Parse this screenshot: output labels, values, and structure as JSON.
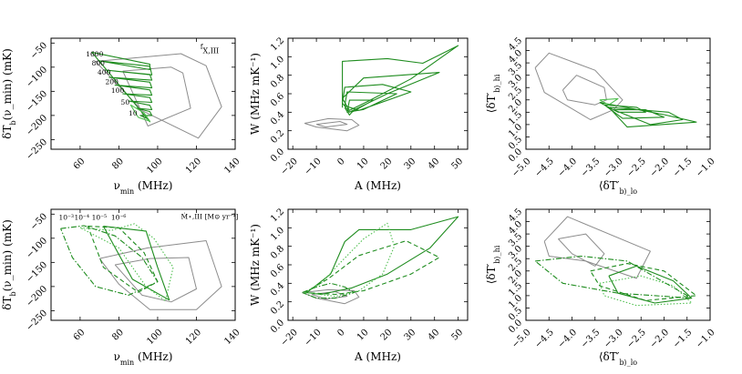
{
  "colors": {
    "gray": "#8c8c8c",
    "green": "#1e8c1e",
    "lightgreen": "#4fbf4f"
  },
  "chart_data": [
    {
      "type": "line",
      "panel": "top-left",
      "xlabel": "ν_min (MHz)",
      "ylabel": "δT_b(ν_min) (mK)",
      "xlim": [
        45,
        140
      ],
      "ylim": [
        -270,
        -40
      ],
      "xticks": [
        "60",
        "80",
        "100",
        "120",
        "140"
      ],
      "xtick_values": [
        60,
        80,
        100,
        120,
        140
      ],
      "yticks": [
        "−50",
        "−100",
        "−150",
        "−200",
        "−250"
      ],
      "ytick_values": [
        -50,
        -100,
        -150,
        -200,
        -250
      ],
      "annotations": [
        {
          "text": "f_X,III",
          "x": 122,
          "y": -62
        },
        {
          "text": "1600",
          "x": 63,
          "y": -78
        },
        {
          "text": "800",
          "x": 66,
          "y": -97
        },
        {
          "text": "400",
          "x": 69,
          "y": -115
        },
        {
          "text": "200",
          "x": 73,
          "y": -135
        },
        {
          "text": "100",
          "x": 76,
          "y": -153
        },
        {
          "text": "50",
          "x": 81,
          "y": -178
        },
        {
          "text": "10",
          "x": 85,
          "y": -200
        }
      ],
      "series": [
        {
          "name": "gray-outer",
          "color": "gray",
          "dash": "solid",
          "x": [
            68,
            112,
            125,
            133,
            121,
            92,
            68
          ],
          "y": [
            -88,
            -72,
            -97,
            -182,
            -247,
            -190,
            -88
          ]
        },
        {
          "name": "gray-inner",
          "color": "gray",
          "dash": "solid",
          "x": [
            82,
            107,
            113,
            117,
            95,
            82
          ],
          "y": [
            -108,
            -100,
            -112,
            -185,
            -222,
            -108
          ]
        },
        {
          "name": "green-tracks",
          "color": "green",
          "dash": "solid",
          "x": [
            66,
            96,
            96,
            70,
            96,
            97,
            73,
            96,
            97,
            75,
            96,
            97,
            78,
            96,
            97,
            82,
            96,
            97,
            85,
            96,
            97,
            89,
            96,
            97,
            91,
            95,
            96,
            66
          ],
          "y": [
            -69,
            -94,
            -105,
            -87,
            -98,
            -116,
            -106,
            -115,
            -127,
            -121,
            -131,
            -143,
            -137,
            -147,
            -158,
            -155,
            -163,
            -173,
            -170,
            -179,
            -188,
            -185,
            -192,
            -200,
            -200,
            -207,
            -213,
            -69
          ]
        },
        {
          "name": "green-light",
          "color": "lightgreen",
          "dash": "solid",
          "x": [
            86,
            93,
            96,
            90,
            86
          ],
          "y": [
            -178,
            -195,
            -212,
            -204,
            -178
          ]
        }
      ]
    },
    {
      "type": "line",
      "panel": "top-center",
      "xlabel": "A (MHz)",
      "ylabel": "W (MHz mK⁻¹)",
      "xlim": [
        -22,
        54
      ],
      "ylim": [
        0,
        1.2
      ],
      "xticks": [
        "−20",
        "−10",
        "0",
        "10",
        "20",
        "30",
        "40",
        "50"
      ],
      "xtick_values": [
        -20,
        -10,
        0,
        10,
        20,
        30,
        40,
        50
      ],
      "yticks": [
        "0.0",
        "0.2",
        "0.4",
        "0.6",
        "0.8",
        "1.0",
        "1.2"
      ],
      "ytick_values": [
        0,
        0.2,
        0.4,
        0.6,
        0.8,
        1.0,
        1.2
      ],
      "series": [
        {
          "name": "gray-loop",
          "color": "gray",
          "dash": "solid",
          "x": [
            -15,
            -5,
            5,
            8,
            3,
            -10,
            -15
          ],
          "y": [
            0.28,
            0.33,
            0.32,
            0.26,
            0.2,
            0.24,
            0.28
          ]
        },
        {
          "name": "gray-inner",
          "color": "gray",
          "dash": "solid",
          "x": [
            -10,
            0,
            3,
            -6,
            -10
          ],
          "y": [
            0.27,
            0.3,
            0.27,
            0.24,
            0.27
          ]
        },
        {
          "name": "green-tracks",
          "color": "green",
          "dash": "solid",
          "x": [
            1,
            1,
            20,
            35,
            50,
            30,
            12,
            4,
            1,
            10,
            42,
            20,
            4,
            1,
            2,
            18,
            30,
            8,
            2,
            3,
            24,
            10,
            3,
            4,
            14,
            5,
            4,
            2
          ],
          "y": [
            0.45,
            0.95,
            0.98,
            0.93,
            1.12,
            0.76,
            0.52,
            0.42,
            0.55,
            0.77,
            0.83,
            0.6,
            0.4,
            0.5,
            0.67,
            0.7,
            0.62,
            0.42,
            0.47,
            0.62,
            0.6,
            0.43,
            0.4,
            0.53,
            0.53,
            0.4,
            0.37,
            0.45
          ]
        }
      ]
    },
    {
      "type": "line",
      "panel": "top-right",
      "xlabel": "⟨δT′_b⟩_lo",
      "ylabel": "⟨δT′_b⟩_hi",
      "xlim": [
        -5.0,
        -1.0
      ],
      "ylim": [
        0,
        4.5
      ],
      "xticks": [
        "−5.0",
        "−4.5",
        "−4.0",
        "−3.5",
        "−3.0",
        "−2.5",
        "−2.0",
        "−1.5",
        "−1.0"
      ],
      "xtick_values": [
        -5.0,
        -4.5,
        -4.0,
        -3.5,
        -3.0,
        -2.5,
        -2.0,
        -1.5,
        -1.0
      ],
      "yticks": [
        "0.0",
        "0.5",
        "1.0",
        "1.5",
        "2.0",
        "2.5",
        "3.0",
        "3.5",
        "4.0",
        "4.5"
      ],
      "ytick_values": [
        0,
        0.5,
        1.0,
        1.5,
        2.0,
        2.5,
        3.0,
        3.5,
        4.0,
        4.5
      ],
      "series": [
        {
          "name": "gray-outer",
          "color": "gray",
          "dash": "solid",
          "x": [
            -4.8,
            -4.5,
            -3.5,
            -2.9,
            -3.1,
            -3.6,
            -4.6,
            -4.8
          ],
          "y": [
            3.3,
            3.9,
            3.2,
            2.0,
            1.6,
            1.2,
            2.3,
            3.3
          ]
        },
        {
          "name": "gray-inner",
          "color": "gray",
          "dash": "solid",
          "x": [
            -4.2,
            -3.9,
            -3.3,
            -3.25,
            -3.5,
            -4.1,
            -4.2
          ],
          "y": [
            2.4,
            3.0,
            2.5,
            2.0,
            1.8,
            2.0,
            2.4
          ]
        },
        {
          "name": "green-tracks",
          "color": "green",
          "dash": "solid",
          "x": [
            -3.4,
            -2.0,
            -1.3,
            -2.8,
            -3.2,
            -1.9,
            -1.6,
            -2.3,
            -3.1,
            -2.4,
            -2.0,
            -2.9,
            -3.3,
            -2.6,
            -2.4,
            -3.0,
            -3.4
          ],
          "y": [
            1.9,
            1.4,
            1.1,
            0.9,
            1.7,
            1.5,
            1.2,
            1.0,
            1.6,
            1.6,
            1.3,
            1.25,
            1.8,
            1.7,
            1.5,
            1.5,
            1.9
          ]
        },
        {
          "name": "green-light",
          "color": "lightgreen",
          "dash": "solid",
          "x": [
            -3.4,
            -3.0,
            -3.2,
            -3.4
          ],
          "y": [
            2.0,
            2.05,
            1.8,
            2.0
          ]
        }
      ]
    },
    {
      "type": "line",
      "panel": "bottom-left",
      "xlabel": "ν_min (MHz)",
      "ylabel": "δT_b(ν_min) (mK)",
      "xlim": [
        45,
        140
      ],
      "ylim": [
        -270,
        -40
      ],
      "xticks": [
        "60",
        "80",
        "100",
        "120",
        "140"
      ],
      "xtick_values": [
        60,
        80,
        100,
        120,
        140
      ],
      "yticks": [
        "−50",
        "−100",
        "−150",
        "−200",
        "−250"
      ],
      "ytick_values": [
        -50,
        -100,
        -150,
        -200,
        -250
      ],
      "annotations": [
        {
          "text": "10⁻³",
          "x": 49,
          "y": -62
        },
        {
          "text": "10⁻⁴",
          "x": 57,
          "y": -62
        },
        {
          "text": "10⁻⁵",
          "x": 66,
          "y": -62
        },
        {
          "text": "10⁻⁶",
          "x": 76,
          "y": -62
        },
        {
          "text": "Ṁ⋆,III [M⊙ yr⁻¹]",
          "x": 112,
          "y": -60
        }
      ],
      "series": [
        {
          "name": "gray-outer",
          "color": "gray",
          "dash": "solid",
          "x": [
            70,
            95,
            125,
            133,
            120,
            96,
            80,
            70
          ],
          "y": [
            -142,
            -120,
            -105,
            -200,
            -248,
            -248,
            -195,
            -142
          ]
        },
        {
          "name": "gray-inner",
          "color": "gray",
          "dash": "solid",
          "x": [
            78,
            96,
            116,
            120,
            107,
            92,
            78
          ],
          "y": [
            -155,
            -142,
            -140,
            -205,
            -232,
            -218,
            -155
          ]
        },
        {
          "name": "green-solid",
          "color": "green",
          "dash": "solid",
          "x": [
            72,
            94,
            100,
            106,
            87,
            72
          ],
          "y": [
            -75,
            -85,
            -160,
            -228,
            -185,
            -75
          ]
        },
        {
          "name": "green-dashed",
          "color": "green",
          "dash": "dashed",
          "x": [
            64,
            80,
            93,
            100,
            90,
            72,
            64
          ],
          "y": [
            -75,
            -78,
            -130,
            -190,
            -212,
            -160,
            -75
          ]
        },
        {
          "name": "green-dotted",
          "color": "lightgreen",
          "dash": "dotted",
          "x": [
            60,
            76,
            88,
            98,
            108,
            104,
            94,
            80,
            60
          ],
          "y": [
            -78,
            -84,
            -70,
            -100,
            -160,
            -230,
            -200,
            -120,
            -78
          ]
        },
        {
          "name": "green-dashdot",
          "color": "green",
          "dash": "dashdot",
          "x": [
            50,
            62,
            78,
            92,
            100,
            85,
            68,
            56,
            50
          ],
          "y": [
            -80,
            -74,
            -95,
            -140,
            -190,
            -218,
            -200,
            -140,
            -80
          ]
        }
      ]
    },
    {
      "type": "line",
      "panel": "bottom-center",
      "xlabel": "A (MHz)",
      "ylabel": "W (MHz mK⁻¹)",
      "xlim": [
        -22,
        54
      ],
      "ylim": [
        0,
        1.2
      ],
      "xticks": [
        "−20",
        "−10",
        "0",
        "10",
        "20",
        "30",
        "40",
        "50"
      ],
      "xtick_values": [
        -20,
        -10,
        0,
        10,
        20,
        30,
        40,
        50
      ],
      "yticks": [
        "0.0",
        "0.2",
        "0.4",
        "0.6",
        "0.8",
        "1.0",
        "1.2"
      ],
      "ytick_values": [
        0,
        0.2,
        0.4,
        0.6,
        0.8,
        1.0,
        1.2
      ],
      "series": [
        {
          "name": "gray-loop",
          "color": "gray",
          "dash": "solid",
          "x": [
            -16,
            -5,
            6,
            8,
            2,
            -10,
            -16
          ],
          "y": [
            0.3,
            0.33,
            0.32,
            0.25,
            0.18,
            0.24,
            0.3
          ]
        },
        {
          "name": "gray-inner",
          "color": "gray",
          "dash": "solid",
          "x": [
            -12,
            -2,
            3,
            -6,
            -12
          ],
          "y": [
            0.28,
            0.31,
            0.26,
            0.23,
            0.28
          ]
        },
        {
          "name": "green-solid",
          "color": "green",
          "dash": "solid",
          "x": [
            -14,
            -4,
            2,
            8,
            30,
            50,
            38,
            20,
            5,
            -8,
            -14
          ],
          "y": [
            0.3,
            0.5,
            0.85,
            0.98,
            0.98,
            1.12,
            0.78,
            0.5,
            0.35,
            0.28,
            0.3
          ]
        },
        {
          "name": "green-dashed",
          "color": "green",
          "dash": "dashed",
          "x": [
            -15,
            -5,
            8,
            28,
            42,
            30,
            10,
            -2,
            -15
          ],
          "y": [
            0.3,
            0.45,
            0.7,
            0.86,
            0.68,
            0.5,
            0.32,
            0.28,
            0.3
          ]
        },
        {
          "name": "green-dotted",
          "color": "lightgreen",
          "dash": "dotted",
          "x": [
            -15,
            -8,
            0,
            10,
            20,
            23,
            18,
            8,
            -2,
            -15
          ],
          "y": [
            0.3,
            0.4,
            0.62,
            0.88,
            1.05,
            0.8,
            0.5,
            0.32,
            0.26,
            0.3
          ]
        },
        {
          "name": "green-dashdot",
          "color": "green",
          "dash": "dashdot",
          "x": [
            -16,
            -10,
            -4,
            2,
            6,
            -2,
            -10,
            -16
          ],
          "y": [
            0.3,
            0.36,
            0.4,
            0.36,
            0.3,
            0.24,
            0.24,
            0.3
          ]
        }
      ]
    },
    {
      "type": "line",
      "panel": "bottom-right",
      "xlabel": "⟨δT′_b⟩_lo",
      "ylabel": "⟨δT′_b⟩_hi",
      "xlim": [
        -5.0,
        -1.0
      ],
      "ylim": [
        0,
        4.5
      ],
      "xticks": [
        "−5.0",
        "−4.5",
        "−4.0",
        "−3.5",
        "−3.0",
        "−2.5",
        "−2.0",
        "−1.5",
        "−1.0"
      ],
      "xtick_values": [
        -5.0,
        -4.5,
        -4.0,
        -3.5,
        -3.0,
        -2.5,
        -2.0,
        -1.5,
        -1.0
      ],
      "yticks": [
        "0.0",
        "0.5",
        "1.0",
        "1.5",
        "2.0",
        "2.5",
        "3.0",
        "3.5",
        "4.0",
        "4.5"
      ],
      "ytick_values": [
        0,
        0.5,
        1.0,
        1.5,
        2.0,
        2.5,
        3.0,
        3.5,
        4.0,
        4.5
      ],
      "series": [
        {
          "name": "gray-outer",
          "color": "gray",
          "dash": "solid",
          "x": [
            -4.6,
            -4.1,
            -2.3,
            -2.6,
            -3.7,
            -4.5,
            -4.6
          ],
          "y": [
            3.2,
            4.2,
            2.8,
            1.7,
            2.4,
            2.6,
            3.2
          ]
        },
        {
          "name": "gray-inner",
          "color": "gray",
          "dash": "solid",
          "x": [
            -4.3,
            -3.7,
            -3.3,
            -3.5,
            -4.0,
            -4.3
          ],
          "y": [
            3.3,
            3.5,
            2.7,
            2.2,
            2.7,
            3.3
          ]
        },
        {
          "name": "green-solid",
          "color": "green",
          "dash": "solid",
          "x": [
            -3.2,
            -2.6,
            -1.8,
            -1.4,
            -2.2,
            -3.0,
            -3.2
          ],
          "y": [
            1.8,
            2.2,
            1.6,
            0.9,
            0.7,
            1.1,
            1.8
          ]
        },
        {
          "name": "green-dashed",
          "color": "green",
          "dash": "dashed",
          "x": [
            -3.6,
            -2.8,
            -2.0,
            -1.3,
            -2.4,
            -3.4,
            -3.6
          ],
          "y": [
            2.0,
            2.3,
            2.0,
            1.0,
            0.8,
            1.4,
            2.0
          ]
        },
        {
          "name": "green-dotted",
          "color": "lightgreen",
          "dash": "dotted",
          "x": [
            -3.4,
            -2.5,
            -1.8,
            -1.4,
            -2.6,
            -3.3,
            -3.4
          ],
          "y": [
            1.5,
            1.8,
            1.4,
            0.7,
            0.6,
            1.0,
            1.5
          ]
        },
        {
          "name": "green-dashdot",
          "color": "green",
          "dash": "dashdot",
          "x": [
            -4.8,
            -3.8,
            -2.8,
            -1.4,
            -3.0,
            -4.2,
            -4.8
          ],
          "y": [
            2.4,
            2.6,
            2.4,
            0.9,
            1.1,
            1.5,
            2.4
          ]
        }
      ]
    }
  ]
}
